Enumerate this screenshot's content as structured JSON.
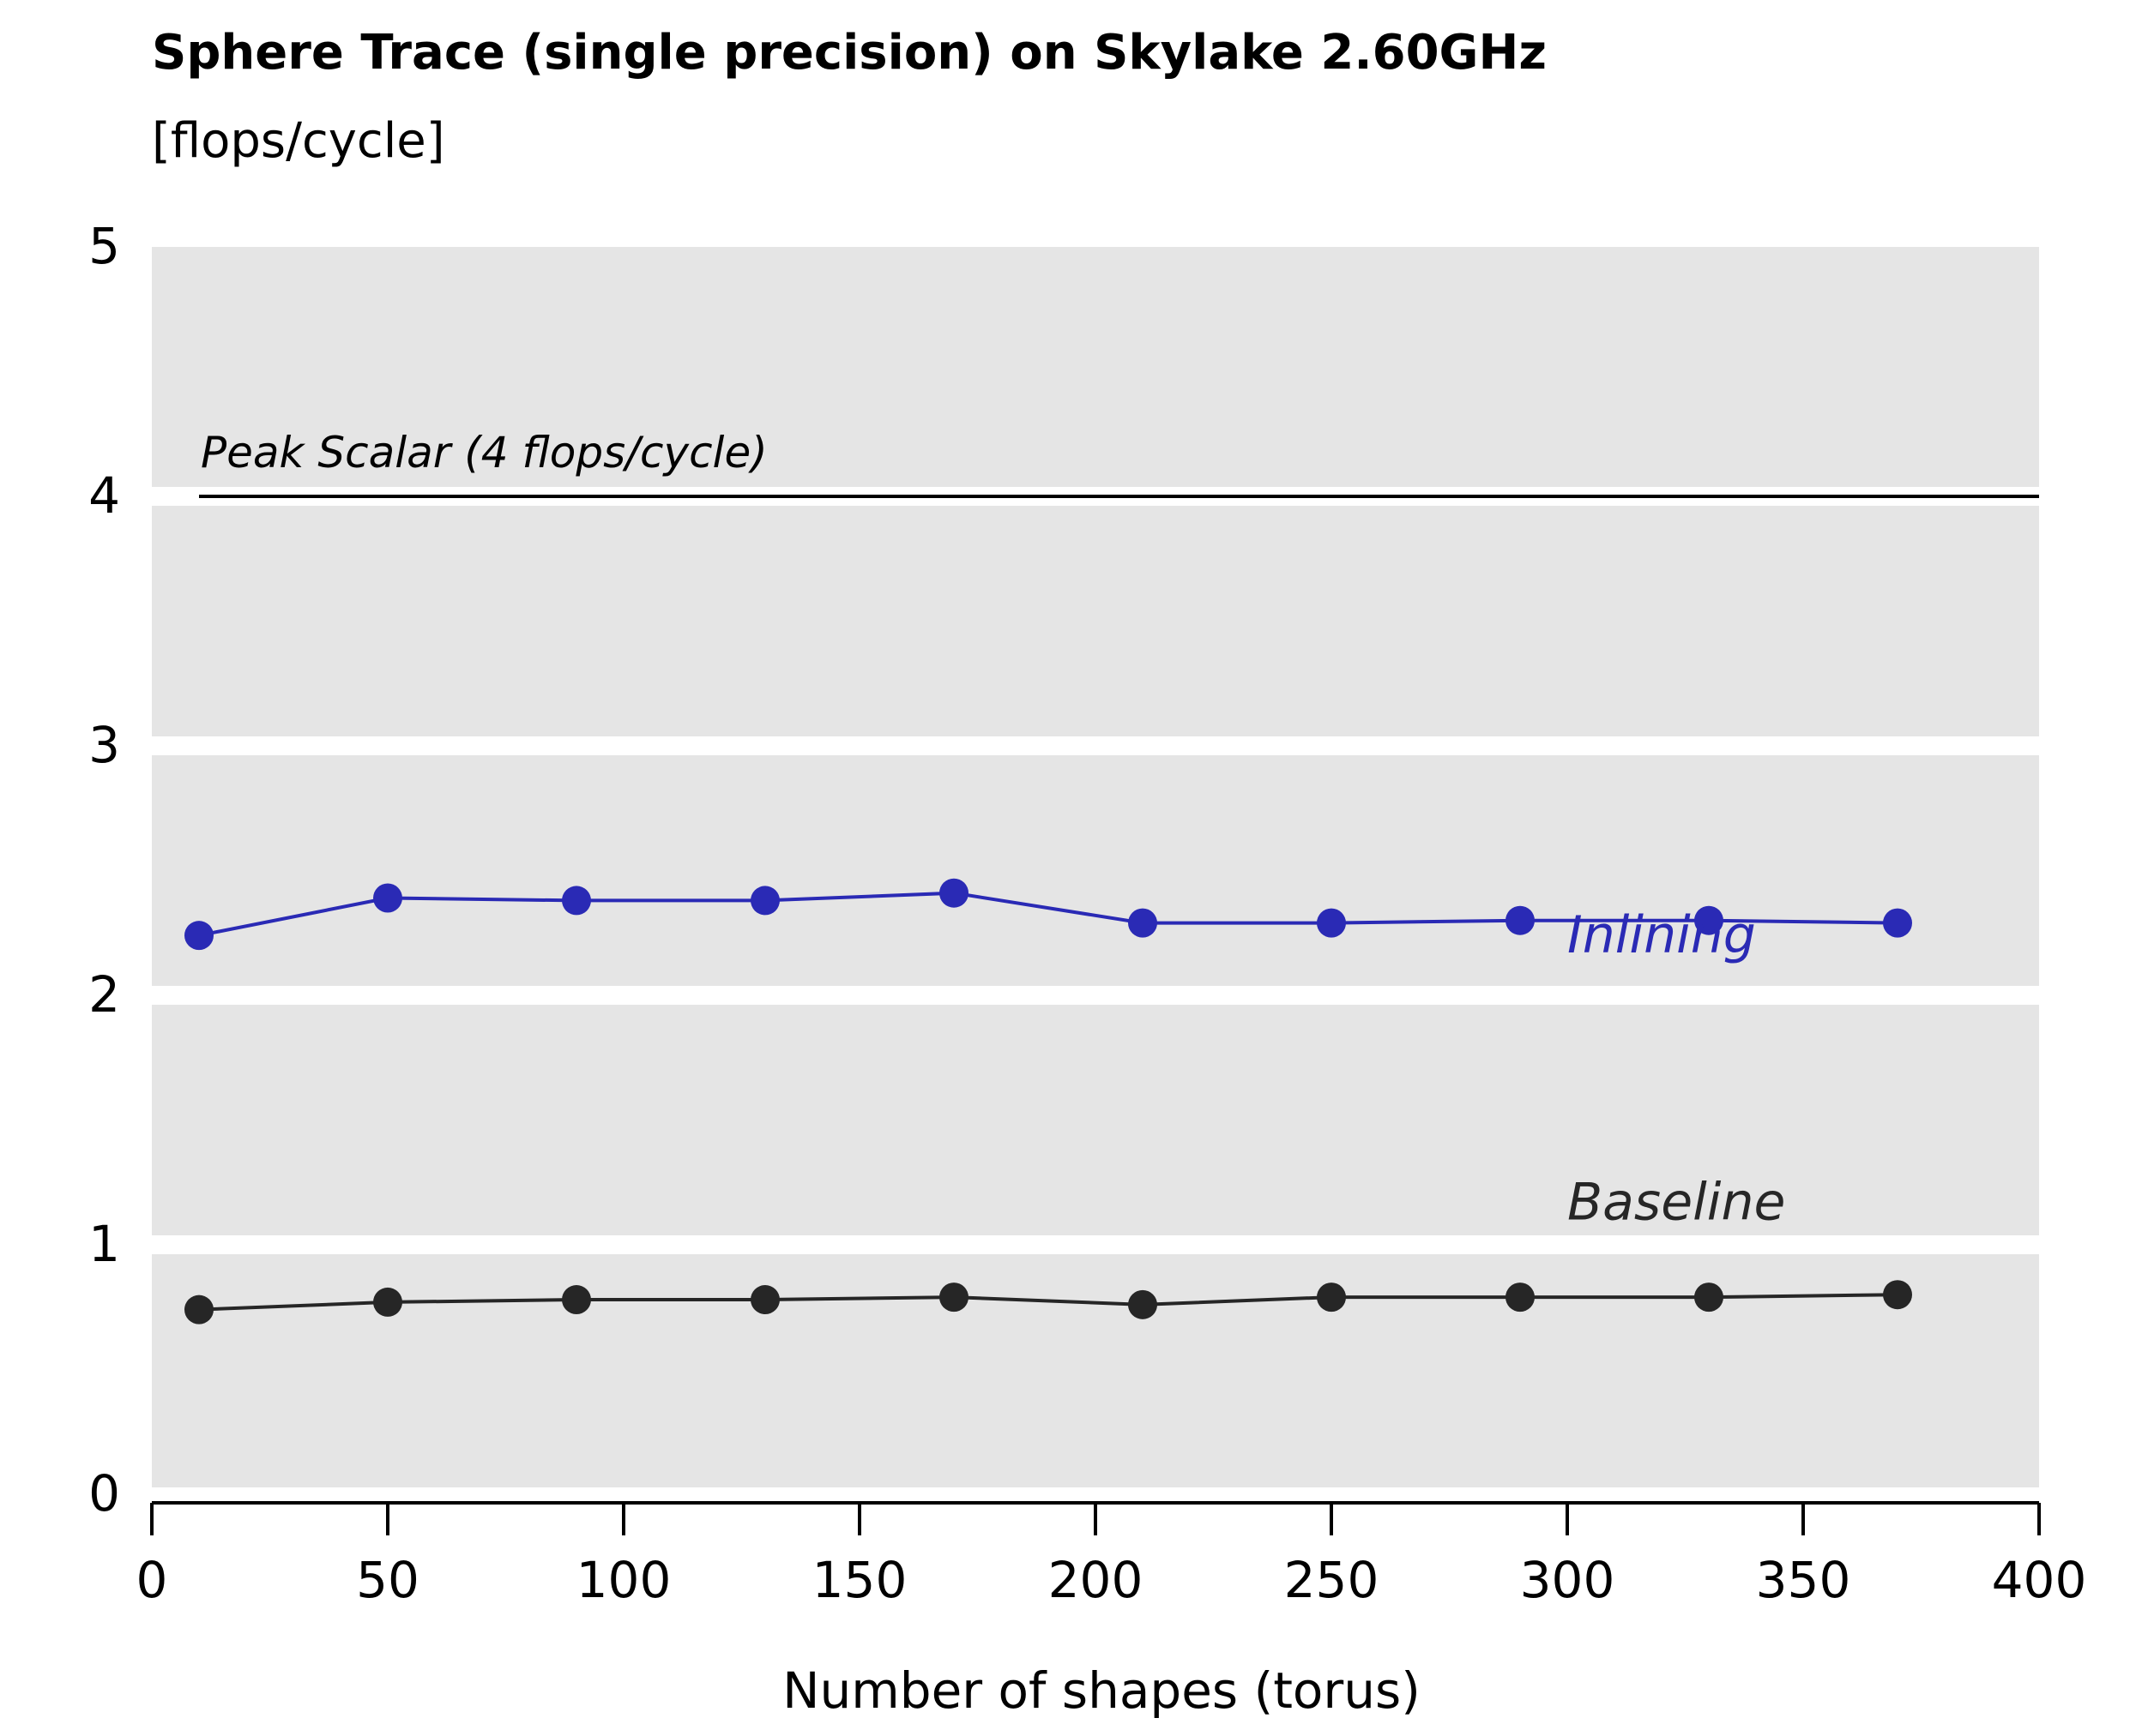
{
  "chart_data": {
    "type": "line",
    "title": "Sphere Trace (single precision) on Skylake 2.60GHz",
    "subtitle": "[flops/cycle]",
    "xlabel": "Number of shapes (torus)",
    "ylabel": "",
    "xlim": [
      0,
      400
    ],
    "ylim": [
      0,
      5
    ],
    "xticks": [
      "0",
      "50",
      "100",
      "150",
      "200",
      "250",
      "300",
      "350",
      "400"
    ],
    "yticks": [
      "0",
      "1",
      "2",
      "3",
      "4",
      "5"
    ],
    "grid": "horizontal white bands on grey background",
    "x": [
      10,
      50,
      90,
      130,
      170,
      210,
      250,
      290,
      330,
      370
    ],
    "series": [
      {
        "name": "Inlining",
        "color": "#2a2ab5",
        "values": [
          2.24,
          2.39,
          2.38,
          2.38,
          2.41,
          2.29,
          2.29,
          2.3,
          2.3,
          2.29
        ]
      },
      {
        "name": "Baseline",
        "color": "#262626",
        "values": [
          0.74,
          0.77,
          0.78,
          0.78,
          0.79,
          0.76,
          0.79,
          0.79,
          0.79,
          0.8
        ]
      }
    ],
    "reference_line": {
      "value": 4,
      "label": "Peak Scalar (4 flops/cycle)",
      "color": "#000000"
    },
    "background_color": "#e5e5e5"
  }
}
